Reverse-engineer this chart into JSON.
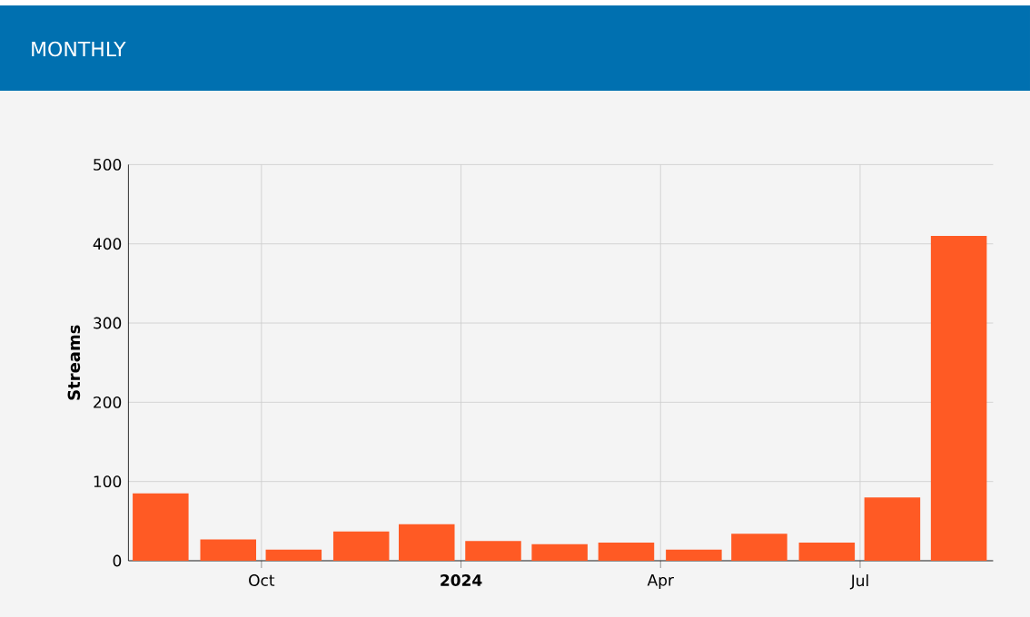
{
  "chart_data": {
    "type": "bar",
    "title": "MONTHLY",
    "ylabel": "Streams",
    "x": [
      "2023-08-16",
      "2023-09-16",
      "2023-10-16",
      "2023-11-16",
      "2023-12-16",
      "2024-01-16",
      "2024-02-15",
      "2024-03-16",
      "2024-04-16",
      "2024-05-16",
      "2024-06-16",
      "2024-07-16",
      "2024-08-16"
    ],
    "values": [
      85,
      27,
      14,
      37,
      46,
      25,
      21,
      23,
      14,
      34,
      23,
      80,
      410
    ],
    "color": "#ff5a24",
    "xlim": [
      "2023-08",
      "2024-09"
    ],
    "xticks": [
      {
        "value": "2023-10",
        "label": "Oct"
      },
      {
        "value": "2024-01",
        "label": "2024"
      },
      {
        "value": "2024-04",
        "label": "Apr"
      },
      {
        "value": "2024-07",
        "label": "Jul"
      }
    ],
    "ylim": [
      0,
      500
    ],
    "yticks": [
      0,
      100,
      200,
      300,
      400,
      500
    ],
    "grid": true
  }
}
